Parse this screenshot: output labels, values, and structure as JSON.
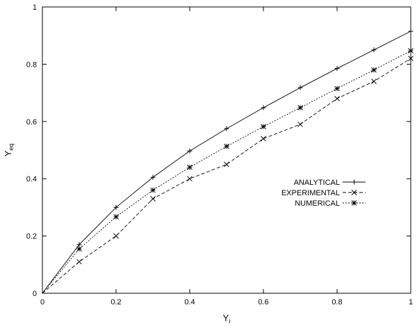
{
  "chart_data": {
    "type": "line",
    "title": "",
    "xlabel": "Y",
    "xlabel_sub": "i",
    "ylabel": "Y",
    "ylabel_sub": "eq",
    "xlim": [
      0,
      1
    ],
    "ylim": [
      0,
      1
    ],
    "xticks": [
      "0",
      "0.2",
      "0.4",
      "0.6",
      "0.8",
      "1"
    ],
    "yticks": [
      "0",
      "0.2",
      "0.4",
      "0.6",
      "0.8",
      "1"
    ],
    "grid": false,
    "legend_position": "right-middle",
    "x": [
      0,
      0.1,
      0.2,
      0.3,
      0.4,
      0.5,
      0.6,
      0.7,
      0.8,
      0.9,
      1.0
    ],
    "series": [
      {
        "name": "ANALYTICAL",
        "line_style": "solid",
        "marker": "plus",
        "values": [
          0,
          0.17,
          0.3,
          0.405,
          0.497,
          0.575,
          0.648,
          0.718,
          0.785,
          0.85,
          0.915
        ]
      },
      {
        "name": "EXPERIMENTAL",
        "line_style": "dashed",
        "marker": "cross",
        "values": [
          0,
          0.11,
          0.2,
          0.33,
          0.4,
          0.45,
          0.54,
          0.59,
          0.68,
          0.74,
          0.82
        ]
      },
      {
        "name": "NUMERICAL",
        "line_style": "dotted",
        "marker": "star",
        "values": [
          0,
          0.155,
          0.267,
          0.36,
          0.44,
          0.513,
          0.582,
          0.648,
          0.715,
          0.78,
          0.847
        ]
      }
    ]
  }
}
